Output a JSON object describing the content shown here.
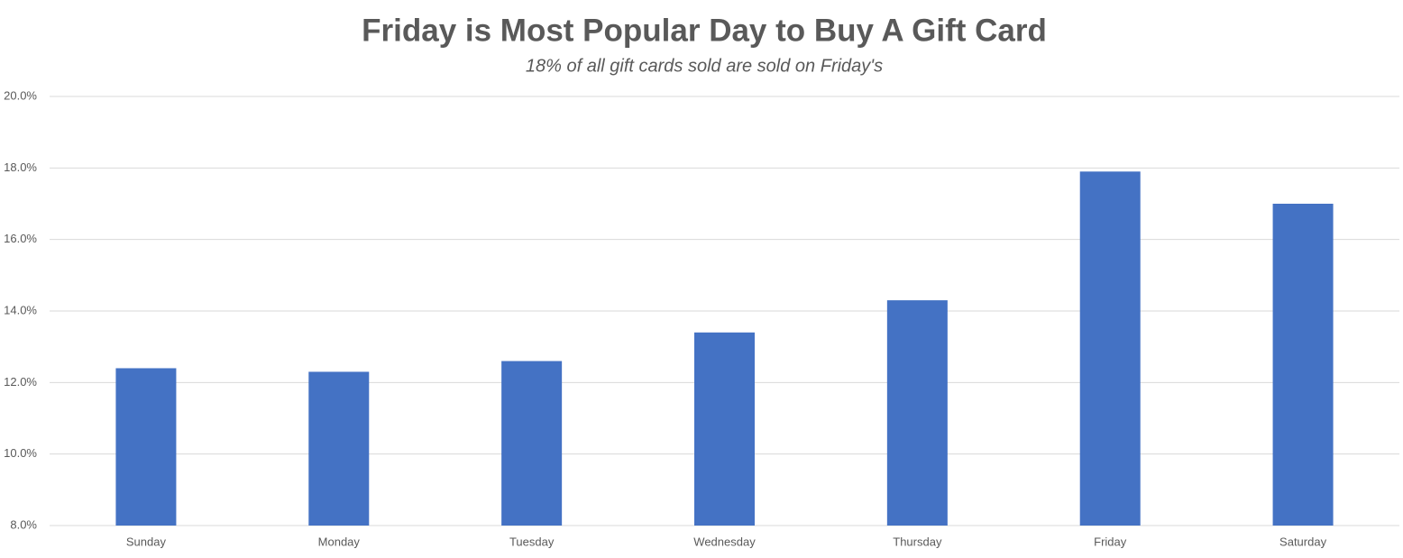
{
  "chart_data": {
    "type": "bar",
    "title": "Friday is Most Popular Day to Buy A Gift Card",
    "subtitle": "18% of all gift cards sold are sold on Friday's",
    "categories": [
      "Sunday",
      "Monday",
      "Tuesday",
      "Wednesday",
      "Thursday",
      "Friday",
      "Saturday"
    ],
    "values": [
      12.4,
      12.3,
      12.6,
      13.4,
      14.3,
      17.9,
      17.0
    ],
    "color": "#4472c4",
    "ylim": [
      8,
      20
    ],
    "yticks": [
      {
        "value": 8,
        "label": "8.0%"
      },
      {
        "value": 10,
        "label": "10.0%"
      },
      {
        "value": 12,
        "label": "12.0%"
      },
      {
        "value": 14,
        "label": "14.0%"
      },
      {
        "value": 16,
        "label": "16.0%"
      },
      {
        "value": 18,
        "label": "18.0%"
      },
      {
        "value": 20,
        "label": "20.0%"
      }
    ],
    "grid": true
  }
}
